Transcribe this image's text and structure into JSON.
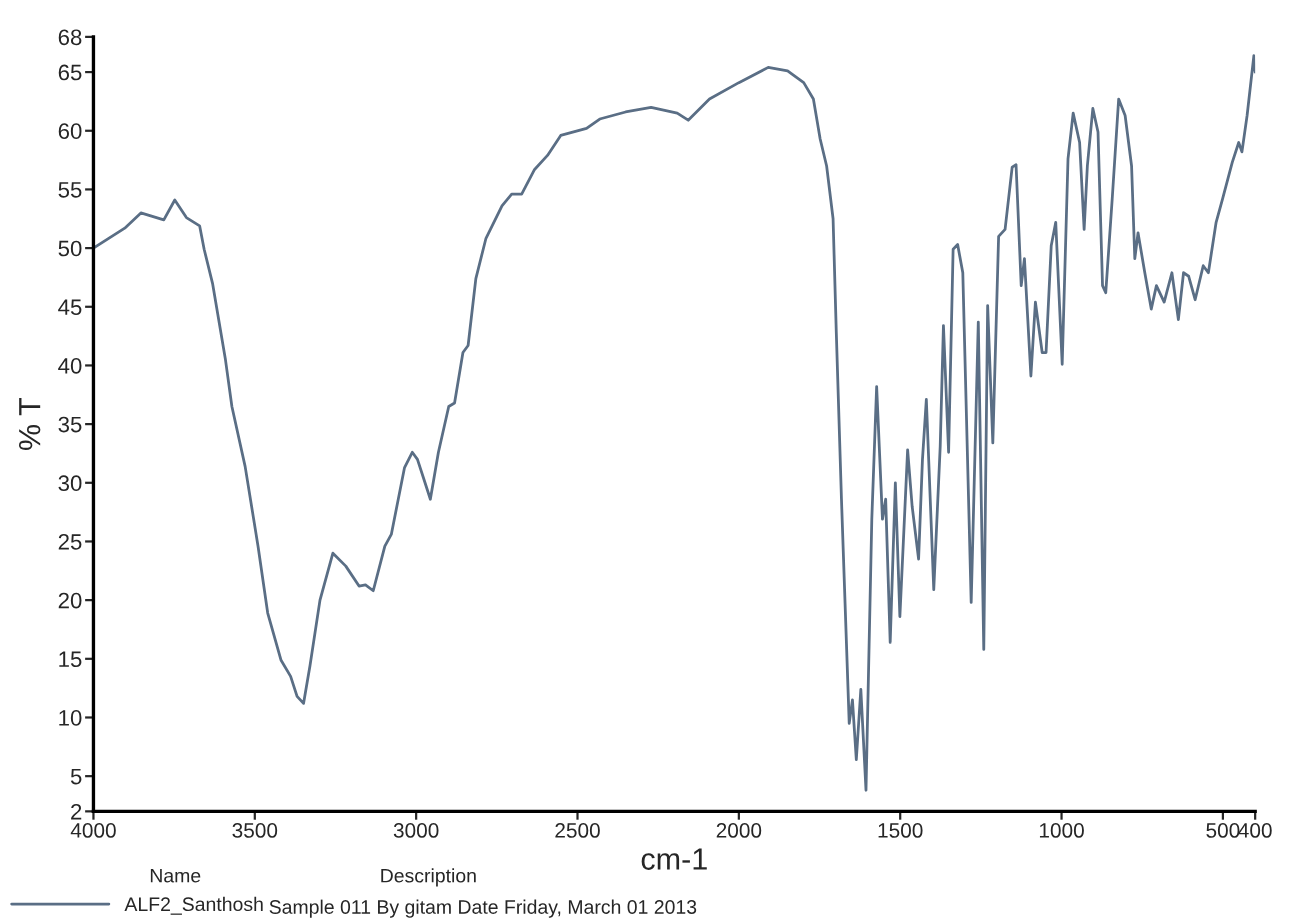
{
  "chart_data": {
    "type": "line",
    "xlabel": "cm-1",
    "ylabel": "% T",
    "xlim": [
      4000,
      400
    ],
    "xticks": [
      4000,
      3500,
      3000,
      2500,
      2000,
      1500,
      1000,
      500,
      400
    ],
    "ylim": [
      2,
      68
    ],
    "yticks": [
      2,
      5,
      10,
      15,
      20,
      25,
      30,
      35,
      40,
      45,
      50,
      55,
      60,
      65,
      68
    ],
    "grid": false,
    "legend": "bottom left",
    "annotations": [
      "Name",
      "Description",
      "Sample 011 By gitam Date Friday, March 01 2013"
    ],
    "series": [
      {
        "name": "ALF2_Santhosh",
        "color": "#5a6e85",
        "x": [
          4000,
          3903,
          3853,
          3782,
          3748,
          3712,
          3671,
          3657,
          3631,
          3591,
          3571,
          3530,
          3490,
          3460,
          3419,
          3389,
          3369,
          3349,
          3329,
          3298,
          3258,
          3218,
          3177,
          3157,
          3133,
          3097,
          3077,
          3036,
          3012,
          2996,
          2976,
          2956,
          2931,
          2899,
          2881,
          2855,
          2839,
          2815,
          2784,
          2734,
          2704,
          2673,
          2633,
          2593,
          2552,
          2472,
          2431,
          2351,
          2272,
          2191,
          2157,
          2091,
          2000,
          1909,
          1849,
          1799,
          1769,
          1748,
          1728,
          1708,
          1698,
          1682,
          1658,
          1648,
          1636,
          1622,
          1606,
          1588,
          1573,
          1555,
          1545,
          1531,
          1515,
          1501,
          1477,
          1463,
          1443,
          1431,
          1419,
          1396,
          1376,
          1366,
          1350,
          1336,
          1322,
          1306,
          1280,
          1258,
          1241,
          1229,
          1213,
          1195,
          1175,
          1153,
          1141,
          1125,
          1115,
          1095,
          1081,
          1060,
          1048,
          1032,
          1018,
          998,
          980,
          964,
          944,
          930,
          920,
          903,
          887,
          873,
          863,
          843,
          823,
          803,
          783,
          773,
          763,
          742,
          722,
          706,
          682,
          658,
          638,
          622,
          606,
          586,
          561,
          545,
          521,
          501,
          471,
          451,
          441,
          425,
          404,
          400
        ],
        "values": [
          50,
          51.7,
          53,
          52.4,
          54.1,
          52.6,
          51.9,
          49.9,
          47,
          40.5,
          36.5,
          31.4,
          24.6,
          18.9,
          14.9,
          13.5,
          11.8,
          11.2,
          14.4,
          20,
          24,
          22.9,
          21.2,
          21.3,
          20.8,
          24.6,
          25.6,
          31.3,
          32.6,
          32,
          30.3,
          28.6,
          32.6,
          36.5,
          36.8,
          41.1,
          41.7,
          47.4,
          50.8,
          53.6,
          54.6,
          54.6,
          56.7,
          57.9,
          59.6,
          60.2,
          61,
          61.6,
          62,
          61.5,
          60.9,
          62.7,
          64.1,
          65.4,
          65.1,
          64.1,
          62.7,
          59.3,
          57,
          52.5,
          42.8,
          28.6,
          9.5,
          11.5,
          6.4,
          12.4,
          3.8,
          26.9,
          38.2,
          26.9,
          28.6,
          16.4,
          30,
          18.6,
          32.8,
          28,
          23.5,
          32,
          37.1,
          20.9,
          33.1,
          43.4,
          32.6,
          49.9,
          50.3,
          47.9,
          19.8,
          43.7,
          15.8,
          45.1,
          33.4,
          51,
          51.6,
          56.9,
          57.1,
          46.8,
          49.1,
          39.1,
          45.4,
          41.1,
          41.1,
          50.2,
          52.2,
          40.1,
          57.6,
          61.5,
          59,
          51.6,
          57,
          61.9,
          59.9,
          46.8,
          46.2,
          54.2,
          62.7,
          61.3,
          57,
          49.1,
          51.3,
          47.9,
          44.8,
          46.8,
          45.4,
          47.9,
          43.9,
          47.9,
          47.6,
          45.6,
          48.5,
          47.9,
          52.2,
          54.2,
          57.3,
          59,
          58.2,
          61.3,
          66.4,
          65
        ]
      }
    ]
  }
}
